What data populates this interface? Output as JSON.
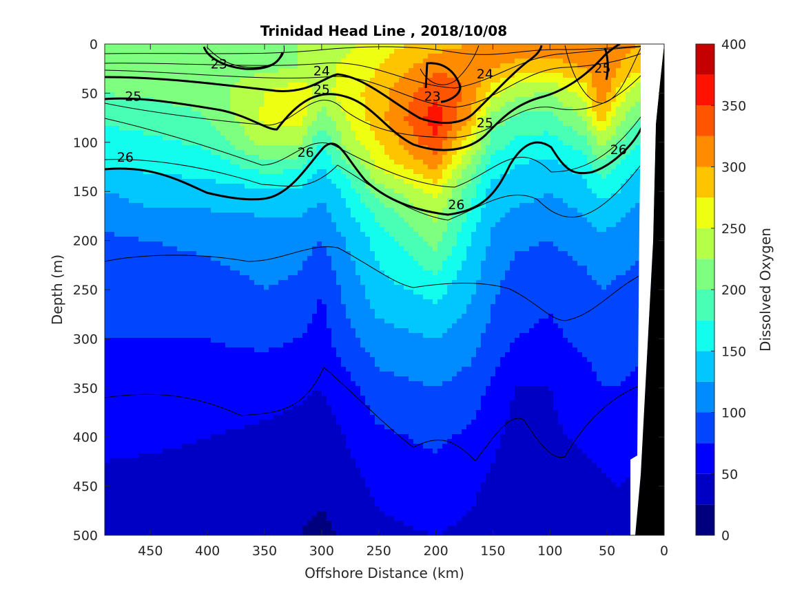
{
  "chart_data": {
    "type": "heatmap",
    "title": "Trinidad Head Line , 2018/10/08",
    "xlabel": "Offshore Distance (km)",
    "ylabel": "Depth (m)",
    "xlim": [
      490,
      0
    ],
    "ylim": [
      0,
      500
    ],
    "x_ticks": [
      450,
      400,
      350,
      300,
      250,
      200,
      150,
      100,
      50,
      0
    ],
    "y_ticks": [
      0,
      50,
      100,
      150,
      200,
      250,
      300,
      350,
      400,
      450,
      500
    ],
    "colorbar": {
      "label": "Dissolved Oxygen",
      "range": [
        0,
        400
      ],
      "ticks": [
        0,
        50,
        100,
        150,
        200,
        250,
        300,
        350,
        400
      ],
      "levels": [
        0,
        25,
        50,
        75,
        100,
        125,
        150,
        175,
        200,
        225,
        250,
        275,
        300,
        325,
        350,
        375,
        400
      ],
      "colors": [
        "#00007f",
        "#0000c4",
        "#0000ff",
        "#0046ff",
        "#008cff",
        "#00c8ff",
        "#12fdee",
        "#49ffb6",
        "#7fff7f",
        "#b6ff49",
        "#eeff12",
        "#ffc400",
        "#ff8c00",
        "#ff5400",
        "#ff1300",
        "#c40000"
      ]
    },
    "density_contour_labels": [
      {
        "label": "23",
        "x": 390,
        "y": 20
      },
      {
        "label": "24",
        "x": 300,
        "y": 27
      },
      {
        "label": "25",
        "x": 465,
        "y": 53
      },
      {
        "label": "25",
        "x": 300,
        "y": 46
      },
      {
        "label": "23",
        "x": 203,
        "y": 53
      },
      {
        "label": "24",
        "x": 157,
        "y": 30
      },
      {
        "label": "25",
        "x": 54,
        "y": 24
      },
      {
        "label": "25",
        "x": 157,
        "y": 80
      },
      {
        "label": "26",
        "x": 472,
        "y": 115
      },
      {
        "label": "26",
        "x": 314,
        "y": 110
      },
      {
        "label": "26",
        "x": 182,
        "y": 163
      },
      {
        "label": "26",
        "x": 40,
        "y": 107
      }
    ],
    "oxygen_field": {
      "x_km": [
        490,
        450,
        400,
        350,
        320,
        300,
        280,
        250,
        200,
        170,
        150,
        130,
        100,
        70,
        55,
        40,
        22
      ],
      "depth_m": [
        0,
        25,
        50,
        75,
        100,
        125,
        150,
        175,
        200,
        250,
        300,
        350,
        400,
        450,
        500
      ],
      "values": [
        [
          205,
          210,
          215,
          220,
          225,
          235,
          245,
          260,
          290,
          300,
          315,
          320,
          320,
          320,
          320,
          310,
          300
        ],
        [
          205,
          210,
          215,
          220,
          225,
          240,
          255,
          275,
          320,
          320,
          300,
          290,
          285,
          300,
          325,
          300,
          280
        ],
        [
          200,
          205,
          210,
          250,
          270,
          240,
          260,
          290,
          345,
          320,
          260,
          230,
          225,
          260,
          320,
          270,
          230
        ],
        [
          180,
          185,
          200,
          255,
          265,
          210,
          250,
          290,
          365,
          300,
          215,
          195,
          190,
          230,
          290,
          235,
          200
        ],
        [
          165,
          170,
          180,
          235,
          230,
          175,
          230,
          275,
          345,
          260,
          190,
          170,
          165,
          190,
          235,
          200,
          175
        ],
        [
          150,
          155,
          160,
          185,
          180,
          150,
          185,
          255,
          305,
          215,
          160,
          150,
          140,
          160,
          190,
          170,
          150
        ],
        [
          125,
          135,
          140,
          145,
          145,
          130,
          155,
          210,
          260,
          185,
          140,
          135,
          125,
          140,
          160,
          150,
          130
        ],
        [
          110,
          120,
          120,
          125,
          125,
          115,
          140,
          180,
          230,
          170,
          130,
          120,
          112,
          125,
          135,
          130,
          115
        ],
        [
          95,
          100,
          105,
          110,
          110,
          100,
          125,
          160,
          210,
          150,
          120,
          105,
          100,
          112,
          120,
          115,
          105
        ],
        [
          80,
          85,
          90,
          100,
          95,
          75,
          105,
          140,
          160,
          130,
          105,
          85,
          80,
          90,
          100,
          95,
          90
        ],
        [
          75,
          75,
          75,
          80,
          75,
          65,
          90,
          115,
          125,
          110,
          90,
          75,
          70,
          80,
          85,
          85,
          80
        ],
        [
          70,
          70,
          65,
          60,
          55,
          50,
          65,
          90,
          100,
          90,
          70,
          50,
          50,
          65,
          75,
          75,
          70
        ],
        [
          60,
          55,
          50,
          45,
          40,
          35,
          50,
          70,
          80,
          70,
          55,
          40,
          45,
          55,
          60,
          65,
          60
        ],
        [
          40,
          40,
          40,
          38,
          35,
          30,
          40,
          55,
          65,
          55,
          45,
          35,
          35,
          40,
          45,
          50,
          45
        ],
        [
          25,
          30,
          28,
          30,
          25,
          18,
          30,
          45,
          50,
          45,
          40,
          30,
          25,
          30,
          35,
          40,
          40
        ]
      ]
    },
    "seafloor": "black wedge near shore"
  }
}
